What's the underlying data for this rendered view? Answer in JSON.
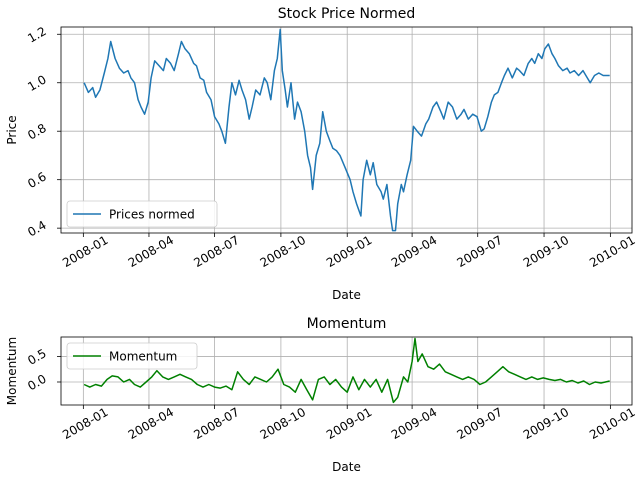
{
  "chart_data": [
    {
      "type": "line",
      "title": "Stock Price Normed",
      "xlabel": "Date",
      "ylabel": "Price",
      "x_ticks": [
        "2008-01",
        "2008-04",
        "2008-07",
        "2008-10",
        "2009-01",
        "2009-04",
        "2009-07",
        "2009-10",
        "2010-01"
      ],
      "y_ticks": [
        "0.4",
        "0.6",
        "0.8",
        "1.0",
        "1.2"
      ],
      "x_range": [
        "2007-12-01",
        "2010-01-31"
      ],
      "ylim": [
        0.38,
        1.23
      ],
      "grid": true,
      "legend_position": "lower-left",
      "series": [
        {
          "name": "Prices normed",
          "color": "#1f77b4",
          "points": [
            [
              "2008-01-02",
              1.0
            ],
            [
              "2008-01-08",
              0.96
            ],
            [
              "2008-01-14",
              0.98
            ],
            [
              "2008-01-18",
              0.94
            ],
            [
              "2008-01-24",
              0.97
            ],
            [
              "2008-01-30",
              1.04
            ],
            [
              "2008-02-04",
              1.1
            ],
            [
              "2008-02-08",
              1.17
            ],
            [
              "2008-02-14",
              1.1
            ],
            [
              "2008-02-20",
              1.06
            ],
            [
              "2008-02-26",
              1.04
            ],
            [
              "2008-03-03",
              1.05
            ],
            [
              "2008-03-07",
              1.02
            ],
            [
              "2008-03-12",
              1.0
            ],
            [
              "2008-03-17",
              0.93
            ],
            [
              "2008-03-21",
              0.9
            ],
            [
              "2008-03-26",
              0.87
            ],
            [
              "2008-03-31",
              0.92
            ],
            [
              "2008-04-04",
              1.02
            ],
            [
              "2008-04-09",
              1.09
            ],
            [
              "2008-04-15",
              1.07
            ],
            [
              "2008-04-21",
              1.05
            ],
            [
              "2008-04-25",
              1.1
            ],
            [
              "2008-05-01",
              1.08
            ],
            [
              "2008-05-06",
              1.05
            ],
            [
              "2008-05-12",
              1.12
            ],
            [
              "2008-05-16",
              1.17
            ],
            [
              "2008-05-21",
              1.14
            ],
            [
              "2008-05-27",
              1.12
            ],
            [
              "2008-06-02",
              1.08
            ],
            [
              "2008-06-06",
              1.07
            ],
            [
              "2008-06-11",
              1.02
            ],
            [
              "2008-06-16",
              1.01
            ],
            [
              "2008-06-20",
              0.96
            ],
            [
              "2008-06-26",
              0.93
            ],
            [
              "2008-07-01",
              0.86
            ],
            [
              "2008-07-07",
              0.83
            ],
            [
              "2008-07-11",
              0.8
            ],
            [
              "2008-07-16",
              0.75
            ],
            [
              "2008-07-21",
              0.9
            ],
            [
              "2008-07-25",
              1.0
            ],
            [
              "2008-07-30",
              0.95
            ],
            [
              "2008-08-04",
              1.01
            ],
            [
              "2008-08-08",
              0.97
            ],
            [
              "2008-08-13",
              0.93
            ],
            [
              "2008-08-18",
              0.85
            ],
            [
              "2008-08-22",
              0.9
            ],
            [
              "2008-08-27",
              0.97
            ],
            [
              "2008-09-02",
              0.95
            ],
            [
              "2008-09-08",
              1.02
            ],
            [
              "2008-09-12",
              1.0
            ],
            [
              "2008-09-17",
              0.93
            ],
            [
              "2008-09-22",
              1.05
            ],
            [
              "2008-09-26",
              1.1
            ],
            [
              "2008-09-30",
              1.22
            ],
            [
              "2008-10-03",
              1.05
            ],
            [
              "2008-10-07",
              0.97
            ],
            [
              "2008-10-10",
              0.9
            ],
            [
              "2008-10-15",
              1.0
            ],
            [
              "2008-10-20",
              0.85
            ],
            [
              "2008-10-24",
              0.92
            ],
            [
              "2008-10-29",
              0.88
            ],
            [
              "2008-11-03",
              0.8
            ],
            [
              "2008-11-07",
              0.7
            ],
            [
              "2008-11-11",
              0.65
            ],
            [
              "2008-11-14",
              0.56
            ],
            [
              "2008-11-19",
              0.7
            ],
            [
              "2008-11-24",
              0.75
            ],
            [
              "2008-11-28",
              0.88
            ],
            [
              "2008-12-03",
              0.8
            ],
            [
              "2008-12-08",
              0.76
            ],
            [
              "2008-12-12",
              0.73
            ],
            [
              "2008-12-17",
              0.72
            ],
            [
              "2008-12-22",
              0.7
            ],
            [
              "2008-12-29",
              0.65
            ],
            [
              "2009-01-05",
              0.6
            ],
            [
              "2009-01-09",
              0.55
            ],
            [
              "2009-01-14",
              0.5
            ],
            [
              "2009-01-20",
              0.45
            ],
            [
              "2009-01-23",
              0.6
            ],
            [
              "2009-01-28",
              0.68
            ],
            [
              "2009-02-02",
              0.62
            ],
            [
              "2009-02-06",
              0.67
            ],
            [
              "2009-02-11",
              0.58
            ],
            [
              "2009-02-17",
              0.55
            ],
            [
              "2009-02-20",
              0.52
            ],
            [
              "2009-02-25",
              0.58
            ],
            [
              "2009-03-02",
              0.45
            ],
            [
              "2009-03-05",
              0.39
            ],
            [
              "2009-03-09",
              0.39
            ],
            [
              "2009-03-12",
              0.5
            ],
            [
              "2009-03-17",
              0.58
            ],
            [
              "2009-03-20",
              0.55
            ],
            [
              "2009-03-25",
              0.62
            ],
            [
              "2009-03-30",
              0.68
            ],
            [
              "2009-04-03",
              0.82
            ],
            [
              "2009-04-08",
              0.8
            ],
            [
              "2009-04-14",
              0.78
            ],
            [
              "2009-04-20",
              0.83
            ],
            [
              "2009-04-24",
              0.85
            ],
            [
              "2009-04-30",
              0.9
            ],
            [
              "2009-05-05",
              0.92
            ],
            [
              "2009-05-11",
              0.88
            ],
            [
              "2009-05-15",
              0.85
            ],
            [
              "2009-05-21",
              0.92
            ],
            [
              "2009-05-27",
              0.9
            ],
            [
              "2009-06-02",
              0.85
            ],
            [
              "2009-06-08",
              0.87
            ],
            [
              "2009-06-12",
              0.89
            ],
            [
              "2009-06-18",
              0.85
            ],
            [
              "2009-06-24",
              0.87
            ],
            [
              "2009-06-30",
              0.86
            ],
            [
              "2009-07-06",
              0.8
            ],
            [
              "2009-07-10",
              0.81
            ],
            [
              "2009-07-15",
              0.86
            ],
            [
              "2009-07-20",
              0.92
            ],
            [
              "2009-07-24",
              0.95
            ],
            [
              "2009-07-29",
              0.96
            ],
            [
              "2009-08-03",
              1.0
            ],
            [
              "2009-08-07",
              1.03
            ],
            [
              "2009-08-12",
              1.06
            ],
            [
              "2009-08-18",
              1.02
            ],
            [
              "2009-08-24",
              1.06
            ],
            [
              "2009-08-28",
              1.05
            ],
            [
              "2009-09-03",
              1.03
            ],
            [
              "2009-09-09",
              1.08
            ],
            [
              "2009-09-14",
              1.1
            ],
            [
              "2009-09-18",
              1.08
            ],
            [
              "2009-09-23",
              1.12
            ],
            [
              "2009-09-28",
              1.1
            ],
            [
              "2009-10-02",
              1.14
            ],
            [
              "2009-10-07",
              1.16
            ],
            [
              "2009-10-12",
              1.12
            ],
            [
              "2009-10-16",
              1.1
            ],
            [
              "2009-10-21",
              1.07
            ],
            [
              "2009-10-27",
              1.05
            ],
            [
              "2009-11-02",
              1.06
            ],
            [
              "2009-11-06",
              1.04
            ],
            [
              "2009-11-12",
              1.05
            ],
            [
              "2009-11-18",
              1.03
            ],
            [
              "2009-11-24",
              1.05
            ],
            [
              "2009-11-30",
              1.02
            ],
            [
              "2009-12-04",
              1.0
            ],
            [
              "2009-12-10",
              1.03
            ],
            [
              "2009-12-16",
              1.04
            ],
            [
              "2009-12-22",
              1.03
            ],
            [
              "2009-12-31",
              1.03
            ]
          ]
        }
      ]
    },
    {
      "type": "line",
      "title": "Momentum",
      "xlabel": "Date",
      "ylabel": "Momentum",
      "x_ticks": [
        "2008-01",
        "2008-04",
        "2008-07",
        "2008-10",
        "2009-01",
        "2009-04",
        "2009-07",
        "2009-10",
        "2010-01"
      ],
      "y_ticks": [
        "0.0",
        "0.5"
      ],
      "x_range": [
        "2007-12-01",
        "2010-01-31"
      ],
      "ylim": [
        -0.45,
        0.88
      ],
      "grid": true,
      "legend_position": "upper-left",
      "series": [
        {
          "name": "Momentum",
          "color": "#008000",
          "points": [
            [
              "2008-01-02",
              -0.05
            ],
            [
              "2008-01-10",
              -0.1
            ],
            [
              "2008-01-18",
              -0.05
            ],
            [
              "2008-01-26",
              -0.08
            ],
            [
              "2008-02-03",
              0.05
            ],
            [
              "2008-02-10",
              0.12
            ],
            [
              "2008-02-18",
              0.1
            ],
            [
              "2008-02-26",
              0.0
            ],
            [
              "2008-03-05",
              0.05
            ],
            [
              "2008-03-12",
              -0.05
            ],
            [
              "2008-03-20",
              -0.1
            ],
            [
              "2008-03-28",
              0.0
            ],
            [
              "2008-04-05",
              0.1
            ],
            [
              "2008-04-12",
              0.22
            ],
            [
              "2008-04-20",
              0.1
            ],
            [
              "2008-04-28",
              0.05
            ],
            [
              "2008-05-06",
              0.1
            ],
            [
              "2008-05-14",
              0.15
            ],
            [
              "2008-05-22",
              0.1
            ],
            [
              "2008-05-30",
              0.05
            ],
            [
              "2008-06-07",
              -0.05
            ],
            [
              "2008-06-15",
              -0.1
            ],
            [
              "2008-06-23",
              -0.05
            ],
            [
              "2008-07-01",
              -0.1
            ],
            [
              "2008-07-09",
              -0.12
            ],
            [
              "2008-07-17",
              -0.08
            ],
            [
              "2008-07-25",
              -0.15
            ],
            [
              "2008-08-02",
              0.2
            ],
            [
              "2008-08-10",
              0.05
            ],
            [
              "2008-08-18",
              -0.05
            ],
            [
              "2008-08-26",
              0.1
            ],
            [
              "2008-09-03",
              0.05
            ],
            [
              "2008-09-11",
              0.0
            ],
            [
              "2008-09-19",
              0.1
            ],
            [
              "2008-09-27",
              0.25
            ],
            [
              "2008-10-05",
              -0.05
            ],
            [
              "2008-10-13",
              -0.1
            ],
            [
              "2008-10-21",
              -0.2
            ],
            [
              "2008-10-29",
              0.05
            ],
            [
              "2008-11-06",
              -0.15
            ],
            [
              "2008-11-14",
              -0.35
            ],
            [
              "2008-11-22",
              0.05
            ],
            [
              "2008-11-30",
              0.1
            ],
            [
              "2008-12-08",
              -0.05
            ],
            [
              "2008-12-16",
              0.05
            ],
            [
              "2008-12-24",
              -0.1
            ],
            [
              "2009-01-01",
              -0.2
            ],
            [
              "2009-01-09",
              0.1
            ],
            [
              "2009-01-17",
              -0.15
            ],
            [
              "2009-01-25",
              0.05
            ],
            [
              "2009-02-02",
              -0.1
            ],
            [
              "2009-02-10",
              0.05
            ],
            [
              "2009-02-18",
              -0.2
            ],
            [
              "2009-02-26",
              0.05
            ],
            [
              "2009-03-06",
              -0.4
            ],
            [
              "2009-03-12",
              -0.3
            ],
            [
              "2009-03-20",
              0.1
            ],
            [
              "2009-03-26",
              0.0
            ],
            [
              "2009-04-01",
              0.4
            ],
            [
              "2009-04-05",
              0.85
            ],
            [
              "2009-04-09",
              0.4
            ],
            [
              "2009-04-15",
              0.55
            ],
            [
              "2009-04-23",
              0.3
            ],
            [
              "2009-05-01",
              0.25
            ],
            [
              "2009-05-09",
              0.35
            ],
            [
              "2009-05-17",
              0.2
            ],
            [
              "2009-05-25",
              0.15
            ],
            [
              "2009-06-02",
              0.1
            ],
            [
              "2009-06-10",
              0.05
            ],
            [
              "2009-06-18",
              0.1
            ],
            [
              "2009-06-26",
              0.05
            ],
            [
              "2009-07-04",
              -0.05
            ],
            [
              "2009-07-12",
              0.0
            ],
            [
              "2009-07-20",
              0.1
            ],
            [
              "2009-07-28",
              0.2
            ],
            [
              "2009-08-05",
              0.3
            ],
            [
              "2009-08-13",
              0.2
            ],
            [
              "2009-08-21",
              0.15
            ],
            [
              "2009-08-29",
              0.1
            ],
            [
              "2009-09-06",
              0.05
            ],
            [
              "2009-09-14",
              0.1
            ],
            [
              "2009-09-22",
              0.05
            ],
            [
              "2009-09-30",
              0.08
            ],
            [
              "2009-10-08",
              0.05
            ],
            [
              "2009-10-16",
              0.03
            ],
            [
              "2009-10-24",
              0.05
            ],
            [
              "2009-11-01",
              0.0
            ],
            [
              "2009-11-09",
              0.03
            ],
            [
              "2009-11-17",
              -0.02
            ],
            [
              "2009-11-25",
              0.02
            ],
            [
              "2009-12-03",
              -0.05
            ],
            [
              "2009-12-11",
              0.0
            ],
            [
              "2009-12-19",
              -0.02
            ],
            [
              "2009-12-31",
              0.02
            ]
          ]
        }
      ]
    }
  ]
}
